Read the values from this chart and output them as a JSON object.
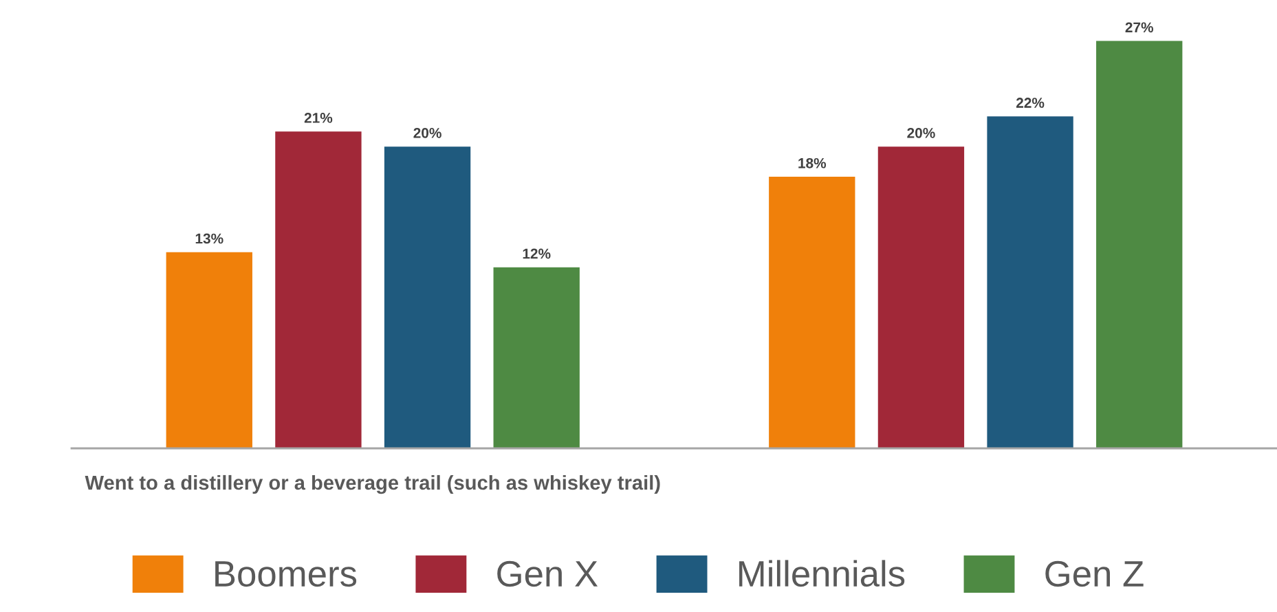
{
  "chart_data": {
    "type": "bar",
    "categories": [
      "Went to a distillery or a beverage trail (such as whiskey trail)",
      null
    ],
    "series": [
      {
        "name": "Boomers",
        "color": "#f0800a",
        "values": [
          13,
          18
        ],
        "value_labels": [
          "13%",
          "18%"
        ]
      },
      {
        "name": "Gen X",
        "color": "#a12838",
        "values": [
          21,
          20
        ],
        "value_labels": [
          "21%",
          "20%"
        ]
      },
      {
        "name": "Millennials",
        "color": "#1f5a7e",
        "values": [
          20,
          22
        ],
        "value_labels": [
          "20%",
          "22%"
        ]
      },
      {
        "name": "Gen Z",
        "color": "#4e8a43",
        "values": [
          12,
          27
        ],
        "value_labels": [
          "12%",
          "27%"
        ]
      }
    ],
    "grid": false,
    "legend": "bottom"
  }
}
